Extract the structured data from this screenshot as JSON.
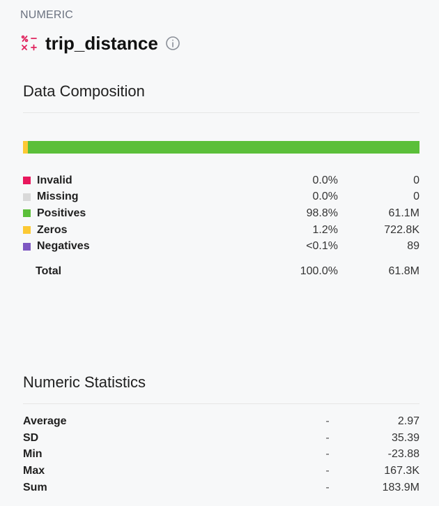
{
  "header": {
    "type_label": "NUMERIC",
    "column_name": "trip_distance",
    "type_icon": "numeric-operators-icon",
    "info_icon": "info-icon"
  },
  "composition": {
    "title": "Data Composition",
    "bar": [
      {
        "name": "Zeros",
        "fraction": 0.012,
        "color": "#fcc934"
      },
      {
        "name": "Positives",
        "fraction": 0.988,
        "color": "#5bbf3a"
      }
    ],
    "rows": [
      {
        "label": "Invalid",
        "color": "#e8175d",
        "pct": "0.0%",
        "count": "0"
      },
      {
        "label": "Missing",
        "color": "#d9d9d9",
        "pct": "0.0%",
        "count": "0"
      },
      {
        "label": "Positives",
        "color": "#5bbf3a",
        "pct": "98.8%",
        "count": "61.1M"
      },
      {
        "label": "Zeros",
        "color": "#fcc934",
        "pct": "1.2%",
        "count": "722.8K"
      },
      {
        "label": "Negatives",
        "color": "#7e57c2",
        "pct": "<0.1%",
        "count": "89"
      }
    ],
    "total": {
      "label": "Total",
      "pct": "100.0%",
      "count": "61.8M"
    }
  },
  "stats": {
    "title": "Numeric Statistics",
    "rows": [
      {
        "label": "Average",
        "dash": "-",
        "value": "2.97"
      },
      {
        "label": "SD",
        "dash": "-",
        "value": "35.39"
      },
      {
        "label": "Min",
        "dash": "-",
        "value": "-23.88"
      },
      {
        "label": "Max",
        "dash": "-",
        "value": "167.3K"
      },
      {
        "label": "Sum",
        "dash": "-",
        "value": "183.9M"
      }
    ]
  }
}
